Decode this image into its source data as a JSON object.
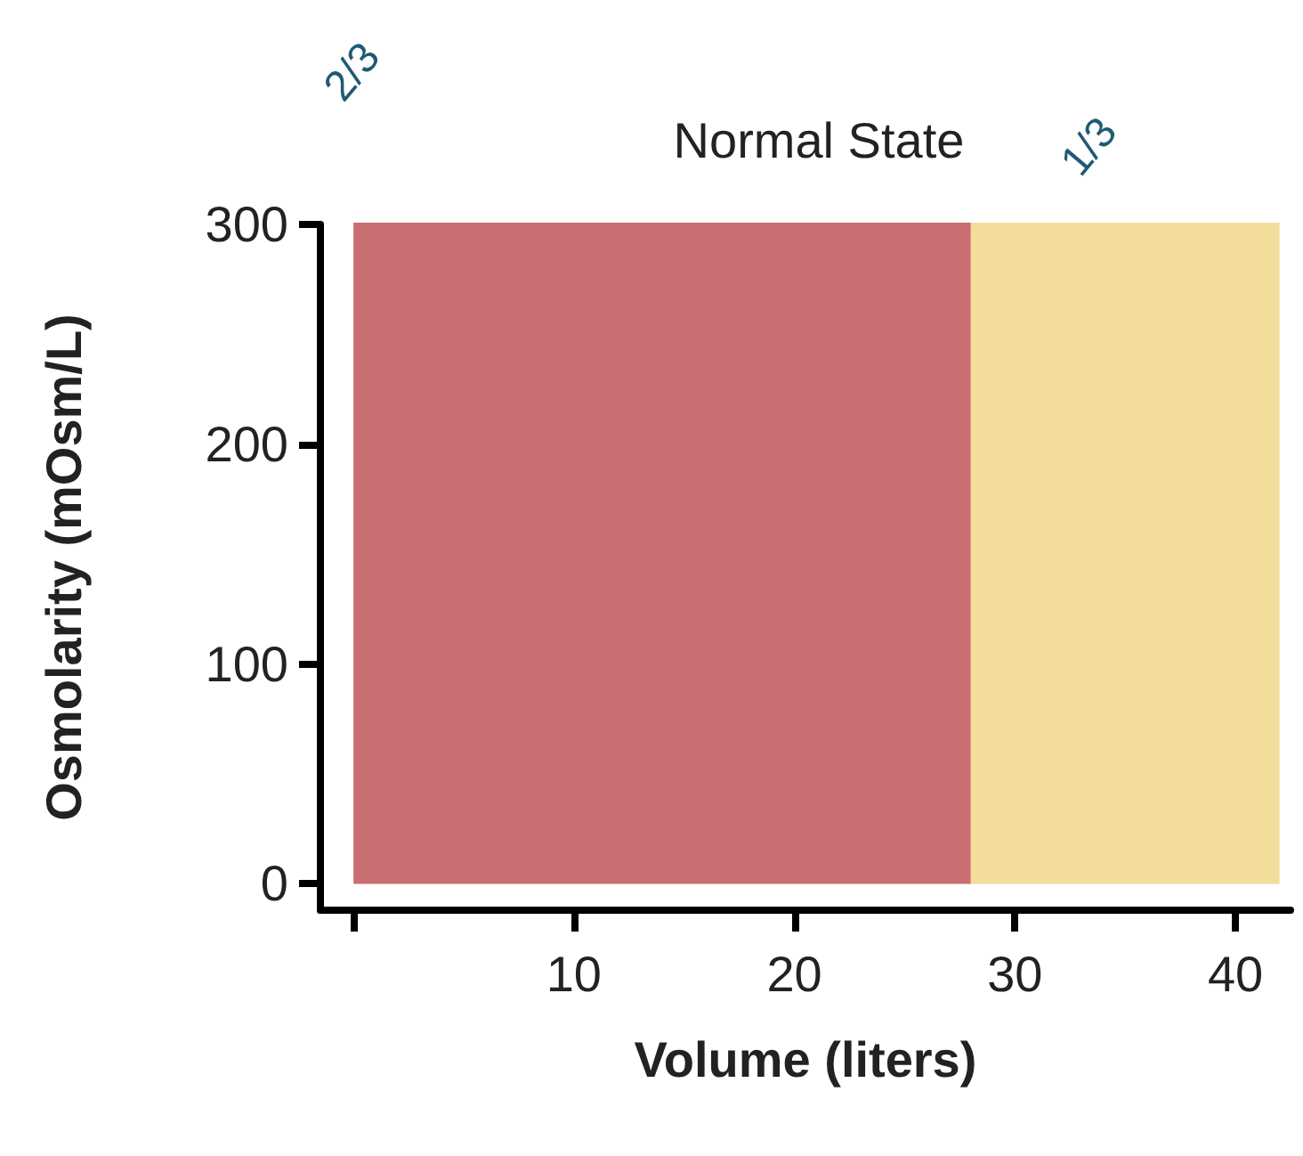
{
  "chart_data": {
    "type": "area",
    "title": "Normal State",
    "xlabel": "Volume (liters)",
    "ylabel": "Osmolarity (mOsm/L)",
    "series": [
      {
        "color": "#c96e73",
        "x": [
          0,
          28
        ],
        "values": [
          300,
          300
        ]
      },
      {
        "color": "#f3dd9b",
        "x": [
          28,
          42
        ],
        "values": [
          300,
          300
        ]
      }
    ],
    "xlim": [
      -1.5,
      42.5
    ],
    "xticks": [
      {
        "value": 0,
        "label": null
      },
      10,
      20,
      30,
      40
    ],
    "ylim": [
      -12,
      300
    ],
    "yticks": [
      0,
      100,
      200,
      300
    ],
    "annotations": [
      "2/3",
      "1/3"
    ]
  }
}
